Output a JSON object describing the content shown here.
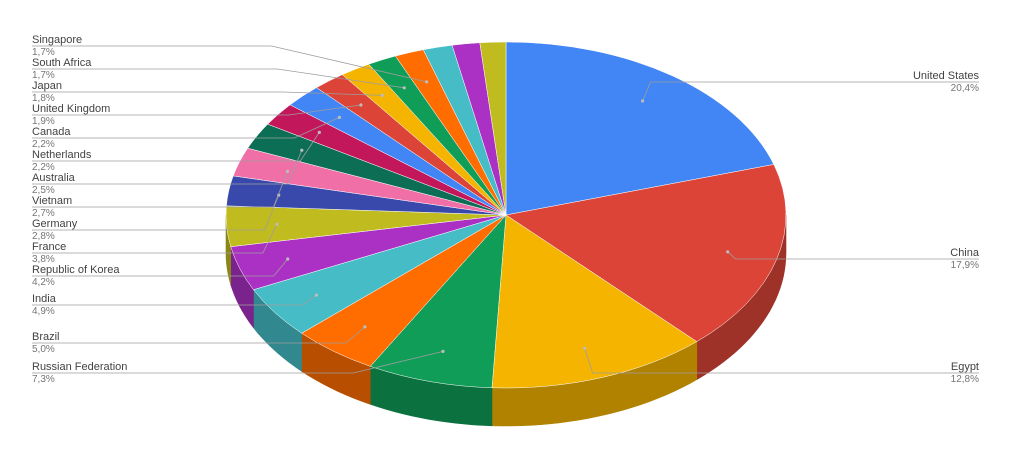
{
  "chart_data": {
    "type": "pie",
    "style": "3d-pie",
    "legend": "none",
    "label_style": "outside labels with leader lines",
    "slices": [
      {
        "label": "United States",
        "value_label": "20,4%",
        "value": 20.4,
        "color": "#4285f4"
      },
      {
        "label": "China",
        "value_label": "17,9%",
        "value": 17.9,
        "color": "#db4437"
      },
      {
        "label": "Egypt",
        "value_label": "12,8%",
        "value": 12.8,
        "color": "#f4b400"
      },
      {
        "label": "Russian Federation",
        "value_label": "7,3%",
        "value": 7.3,
        "color": "#0f9d58"
      },
      {
        "label": "Brazil",
        "value_label": "5,0%",
        "value": 5.0,
        "color": "#ff6d00"
      },
      {
        "label": "India",
        "value_label": "4,9%",
        "value": 4.9,
        "color": "#46bdc6"
      },
      {
        "label": "Republic of Korea",
        "value_label": "4,2%",
        "value": 4.2,
        "color": "#ab30c4"
      },
      {
        "label": "France",
        "value_label": "3,8%",
        "value": 3.8,
        "color": "#c0bb1f"
      },
      {
        "label": "Germany",
        "value_label": "2,8%",
        "value": 2.8,
        "color": "#3949ab"
      },
      {
        "label": "Vietnam",
        "value_label": "2,7%",
        "value": 2.7,
        "color": "#f06fa7"
      },
      {
        "label": "Australia",
        "value_label": "2,5%",
        "value": 2.5,
        "color": "#0b6e55"
      },
      {
        "label": "Netherlands",
        "value_label": "2,2%",
        "value": 2.2,
        "color": "#c2185b"
      },
      {
        "label": "Canada",
        "value_label": "2,2%",
        "value": 2.2,
        "color": "#4285f4"
      },
      {
        "label": "United Kingdom",
        "value_label": "1,9%",
        "value": 1.9,
        "color": "#db4437"
      },
      {
        "label": "Japan",
        "value_label": "1,8%",
        "value": 1.8,
        "color": "#f4b400"
      },
      {
        "label": "South Africa",
        "value_label": "1,7%",
        "value": 1.7,
        "color": "#0f9d58"
      },
      {
        "label": "Singapore",
        "value_label": "1,7%",
        "value": 1.7,
        "color": "#ff6d00"
      },
      {
        "value": 1.7,
        "color": "#46bdc6"
      },
      {
        "value": 1.6,
        "color": "#ab30c4"
      },
      {
        "value": 1.5,
        "color": "#c0bb1f"
      }
    ]
  }
}
